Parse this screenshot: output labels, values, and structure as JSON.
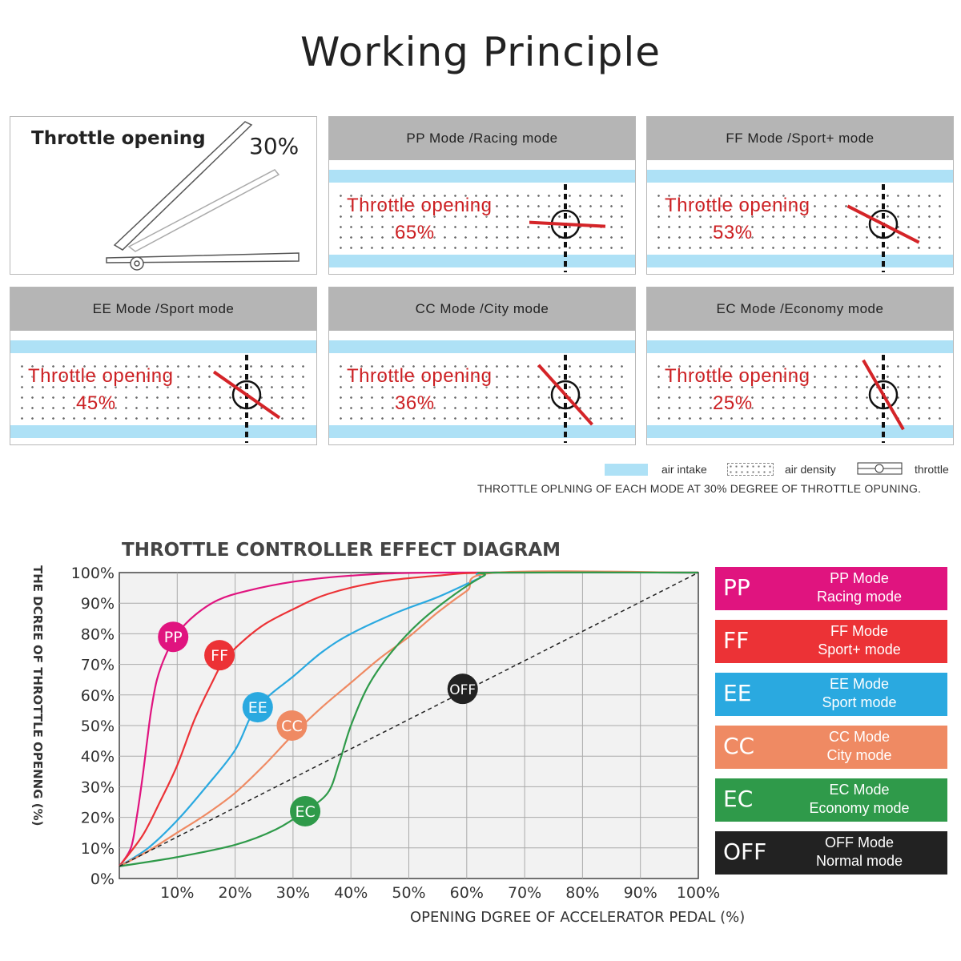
{
  "title": "Working Principle",
  "first_panel": {
    "label": "Throttle opening",
    "value": "30%"
  },
  "panels": [
    {
      "header": "PP Mode /Racing mode",
      "line1": "Throttle opening",
      "line2": "65%",
      "angle": 3
    },
    {
      "header": "FF Mode /Sport+ mode",
      "line1": "Throttle opening",
      "line2": "53%",
      "angle": 27
    },
    {
      "header": "EE Mode /Sport mode",
      "line1": "Throttle opening",
      "line2": "45%",
      "angle": 35
    },
    {
      "header": "CC Mode /City mode",
      "line1": "Throttle opening",
      "line2": "36%",
      "angle": 48
    },
    {
      "header": "EC Mode /Economy mode",
      "line1": "Throttle opening",
      "line2": "25%",
      "angle": 60
    }
  ],
  "legend": {
    "air_intake": "air intake",
    "air_density": "air density",
    "throttle": "throttle"
  },
  "caption": "THROTTLE OPLNING OF EACH MODE AT 30% DEGREE OF THROTTLE OPUNING.",
  "diagram": {
    "title": "THROTTLE CONTROLLER EFFECT DIAGRAM",
    "ylabel": "THE DCREE OF THROTTLE OPENNG (%)",
    "xlabel": "OPENING DGREE OF ACCELERATOR PEDAL (%)"
  },
  "modes": [
    {
      "abbr": "PP",
      "name": "PP Mode",
      "desc": "Racing mode",
      "color": "#e0147f"
    },
    {
      "abbr": "FF",
      "name": "FF Mode",
      "desc": "Sport+ mode",
      "color": "#ec3236"
    },
    {
      "abbr": "EE",
      "name": "EE Mode",
      "desc": "Sport mode",
      "color": "#2aa9e0"
    },
    {
      "abbr": "CC",
      "name": "CC Mode",
      "desc": "City mode",
      "color": "#ef8a63"
    },
    {
      "abbr": "EC",
      "name": "EC Mode",
      "desc": "Economy mode",
      "color": "#2f9a4a"
    },
    {
      "abbr": "OFF",
      "name": "OFF Mode",
      "desc": "Normal mode",
      "color": "#222222"
    }
  ],
  "chart_data": {
    "type": "line",
    "title": "THROTTLE CONTROLLER EFFECT DIAGRAM",
    "xlabel": "OPENING DGREE OF ACCELERATOR PEDAL (%)",
    "ylabel": "THE DCREE OF THROTTLE OPENNG (%)",
    "xlim": [
      0,
      100
    ],
    "ylim": [
      0,
      100
    ],
    "x_ticks": [
      "10%",
      "20%",
      "30%",
      "40%",
      "50%",
      "60%",
      "70%",
      "80%",
      "90%",
      "100%"
    ],
    "y_ticks": [
      "0%",
      "10%",
      "20%",
      "30%",
      "40%",
      "50%",
      "60%",
      "70%",
      "80%",
      "90%",
      "100%"
    ],
    "grid": true,
    "series": [
      {
        "name": "PP",
        "color": "#e0147f",
        "points": [
          [
            0,
            4
          ],
          [
            2,
            10
          ],
          [
            3,
            20
          ],
          [
            4,
            33
          ],
          [
            4.8,
            45
          ],
          [
            5.5,
            55
          ],
          [
            6.5,
            65
          ],
          [
            8,
            73
          ],
          [
            10,
            80
          ],
          [
            13,
            86
          ],
          [
            17,
            91
          ],
          [
            22,
            94
          ],
          [
            30,
            97
          ],
          [
            40,
            99
          ],
          [
            55,
            100
          ],
          [
            100,
            100
          ]
        ]
      },
      {
        "name": "FF",
        "color": "#ec3236",
        "points": [
          [
            0,
            4
          ],
          [
            4,
            14
          ],
          [
            7,
            25
          ],
          [
            10,
            37
          ],
          [
            13,
            52
          ],
          [
            16,
            64
          ],
          [
            18,
            71
          ],
          [
            21,
            77
          ],
          [
            25,
            83
          ],
          [
            30,
            88
          ],
          [
            36,
            93
          ],
          [
            45,
            97
          ],
          [
            55,
            99
          ],
          [
            65,
            100
          ],
          [
            100,
            100
          ]
        ]
      },
      {
        "name": "EE",
        "color": "#2aa9e0",
        "points": [
          [
            0,
            4
          ],
          [
            5,
            10
          ],
          [
            10,
            19
          ],
          [
            15,
            30
          ],
          [
            20,
            42
          ],
          [
            23,
            54
          ],
          [
            26,
            60
          ],
          [
            30,
            66
          ],
          [
            35,
            74
          ],
          [
            40,
            80
          ],
          [
            48,
            87
          ],
          [
            55,
            92
          ],
          [
            62,
            98
          ],
          [
            65,
            100
          ],
          [
            100,
            100
          ]
        ]
      },
      {
        "name": "CC",
        "color": "#ef8a63",
        "points": [
          [
            0,
            4
          ],
          [
            5,
            9
          ],
          [
            10,
            15
          ],
          [
            15,
            21
          ],
          [
            20,
            28
          ],
          [
            25,
            37
          ],
          [
            30,
            47
          ],
          [
            35,
            56
          ],
          [
            40,
            64
          ],
          [
            45,
            72
          ],
          [
            50,
            79
          ],
          [
            55,
            87
          ],
          [
            60,
            94
          ],
          [
            65,
            100
          ],
          [
            100,
            100
          ]
        ]
      },
      {
        "name": "EC",
        "color": "#2f9a4a",
        "points": [
          [
            0,
            4
          ],
          [
            10,
            7
          ],
          [
            20,
            11
          ],
          [
            27,
            16
          ],
          [
            32,
            22
          ],
          [
            36,
            28
          ],
          [
            38,
            38
          ],
          [
            40,
            50
          ],
          [
            43,
            63
          ],
          [
            47,
            74
          ],
          [
            52,
            84
          ],
          [
            58,
            93
          ],
          [
            63,
            99
          ],
          [
            65,
            100
          ],
          [
            100,
            100
          ]
        ]
      },
      {
        "name": "OFF",
        "color": "#222222",
        "dashed": true,
        "points": [
          [
            0,
            4
          ],
          [
            100,
            100
          ]
        ]
      }
    ],
    "markers": [
      {
        "label": "PP",
        "x": 9.3,
        "y": 79
      },
      {
        "label": "FF",
        "x": 17.3,
        "y": 73
      },
      {
        "label": "EE",
        "x": 23.9,
        "y": 56
      },
      {
        "label": "CC",
        "x": 29.8,
        "y": 50
      },
      {
        "label": "EC",
        "x": 32.1,
        "y": 22
      },
      {
        "label": "OFF",
        "x": 59.3,
        "y": 62
      }
    ]
  }
}
